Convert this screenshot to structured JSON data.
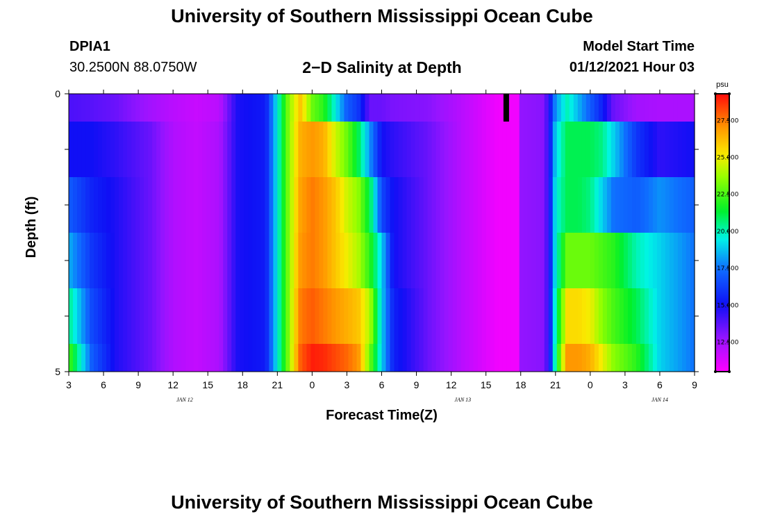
{
  "page": {
    "title_top": "University of Southern Mississippi Ocean Cube",
    "title_bottom": "University of Southern Mississippi Ocean Cube",
    "station_id": "DPIA1",
    "station_coords": "30.2500N 88.0750W",
    "model_start_label": "Model Start Time",
    "model_start_value": "01/12/2021 Hour 03"
  },
  "chart_data": {
    "type": "heatmap",
    "title": "2−D Salinity at Depth",
    "xlabel": "Forecast Time(Z)",
    "ylabel": "Depth (ft)",
    "colorbar_unit": "psu",
    "colorbar_ticks": [
      "27.500",
      "25.000",
      "22.500",
      "20.000",
      "17.500",
      "15.000",
      "12.500"
    ],
    "colorbar_range": [
      10.5,
      29.3
    ],
    "x_ticks": [
      "3",
      "6",
      "9",
      "12",
      "15",
      "18",
      "21",
      "0",
      "3",
      "6",
      "9",
      "12",
      "15",
      "18",
      "21",
      "0",
      "3",
      "6",
      "9"
    ],
    "day_labels": [
      {
        "label": "JAN  12",
        "hour_index": 10
      },
      {
        "label": "JAN  13",
        "hour_index": 34
      },
      {
        "label": "JAN  14",
        "hour_index": 51
      }
    ],
    "y_ticks": [
      "0",
      "5"
    ],
    "ylim": [
      0,
      5
    ],
    "x_hours_start": 3,
    "x_hours_end": 57,
    "depth_bands": [
      0,
      0.5,
      1.5,
      2.5,
      3.5,
      4.5,
      5
    ],
    "profiles": [
      {
        "hour": 3,
        "values": [
          14.0,
          15.0,
          17.0,
          18.5,
          20.5,
          22.5
        ]
      },
      {
        "hour": 5,
        "values": [
          13.8,
          15.0,
          15.5,
          16.0,
          16.5,
          17.0
        ]
      },
      {
        "hour": 7,
        "values": [
          13.5,
          14.5,
          14.8,
          14.8,
          14.8,
          14.8
        ]
      },
      {
        "hour": 10,
        "values": [
          12.5,
          13.5,
          13.5,
          13.5,
          13.5,
          13.5
        ]
      },
      {
        "hour": 12,
        "values": [
          12.0,
          12.2,
          12.2,
          12.2,
          12.2,
          12.2
        ]
      },
      {
        "hour": 14,
        "values": [
          11.7,
          11.8,
          11.8,
          11.8,
          11.8,
          11.8
        ]
      },
      {
        "hour": 16,
        "values": [
          12.0,
          12.3,
          12.3,
          12.3,
          12.3,
          12.3
        ]
      },
      {
        "hour": 17.5,
        "values": [
          14.8,
          14.8,
          14.8,
          14.8,
          14.8,
          14.8
        ]
      },
      {
        "hour": 20,
        "values": [
          15.3,
          15.3,
          15.3,
          15.3,
          15.3,
          15.3
        ]
      },
      {
        "hour": 21,
        "values": [
          19.5,
          19.5,
          19.5,
          19.5,
          19.5,
          19.5
        ]
      },
      {
        "hour": 22,
        "values": [
          23.5,
          23.5,
          23.5,
          23.5,
          23.5,
          23.5
        ]
      },
      {
        "hour": 23,
        "values": [
          26.0,
          26.5,
          26.8,
          27.0,
          27.5,
          28.0
        ]
      },
      {
        "hour": 24,
        "values": [
          23.0,
          27.0,
          27.5,
          27.5,
          28.0,
          29.0
        ]
      },
      {
        "hour": 25,
        "values": [
          22.0,
          26.5,
          27.0,
          27.0,
          27.5,
          28.8
        ]
      },
      {
        "hour": 26,
        "values": [
          19.5,
          24.5,
          26.0,
          26.0,
          27.0,
          28.3
        ]
      },
      {
        "hour": 27,
        "values": [
          17.0,
          23.0,
          24.5,
          25.0,
          26.5,
          27.8
        ]
      },
      {
        "hour": 28,
        "values": [
          16.0,
          21.0,
          23.5,
          24.0,
          26.0,
          27.0
        ]
      },
      {
        "hour": 29,
        "values": [
          13.5,
          18.0,
          21.0,
          22.0,
          24.0,
          23.0
        ]
      },
      {
        "hour": 30,
        "values": [
          13.5,
          15.0,
          16.5,
          19.0,
          19.0,
          19.0
        ]
      },
      {
        "hour": 31,
        "values": [
          13.2,
          14.5,
          15.0,
          15.0,
          15.5,
          15.5
        ]
      },
      {
        "hour": 34,
        "values": [
          13.0,
          13.5,
          13.5,
          13.5,
          13.5,
          13.5
        ]
      },
      {
        "hour": 37,
        "values": [
          12.0,
          12.0,
          12.0,
          12.0,
          12.0,
          12.0
        ]
      },
      {
        "hour": 40,
        "values": [
          10.8,
          10.8,
          10.8,
          10.8,
          10.8,
          10.8
        ]
      },
      {
        "hour": 41.9,
        "values": [
          10.8,
          10.8,
          10.8,
          10.8,
          10.8,
          10.8
        ]
      },
      {
        "hour": 42,
        "values": [
          12.8,
          12.8,
          12.8,
          12.8,
          12.8,
          12.8
        ]
      },
      {
        "hour": 44,
        "values": [
          13.0,
          13.0,
          13.0,
          13.0,
          13.0,
          13.0
        ]
      },
      {
        "hour": 44.5,
        "values": [
          15.0,
          15.0,
          15.0,
          15.0,
          15.0,
          15.0
        ]
      },
      {
        "hour": 45,
        "values": [
          18.0,
          19.0,
          19.5,
          19.5,
          20.0,
          20.5
        ]
      },
      {
        "hour": 46,
        "values": [
          20.0,
          21.0,
          21.0,
          23.0,
          25.5,
          27.0
        ]
      },
      {
        "hour": 47,
        "values": [
          18.5,
          21.0,
          21.0,
          23.0,
          25.5,
          27.0
        ]
      },
      {
        "hour": 48,
        "values": [
          17.0,
          21.0,
          20.5,
          23.0,
          25.0,
          26.5
        ]
      },
      {
        "hour": 49,
        "values": [
          15.5,
          20.5,
          19.0,
          22.5,
          23.5,
          25.0
        ]
      },
      {
        "hour": 50,
        "values": [
          13.5,
          19.0,
          17.5,
          22.0,
          22.5,
          23.5
        ]
      },
      {
        "hour": 52,
        "values": [
          12.5,
          16.0,
          17.0,
          20.0,
          21.0,
          22.0
        ]
      },
      {
        "hour": 54,
        "values": [
          12.3,
          14.5,
          18.0,
          19.0,
          19.0,
          19.0
        ]
      },
      {
        "hour": 57,
        "values": [
          12.3,
          15.0,
          17.0,
          17.5,
          17.5,
          17.5
        ]
      }
    ],
    "missing_marker": {
      "hour": 40.75,
      "depth": 0.25
    }
  }
}
